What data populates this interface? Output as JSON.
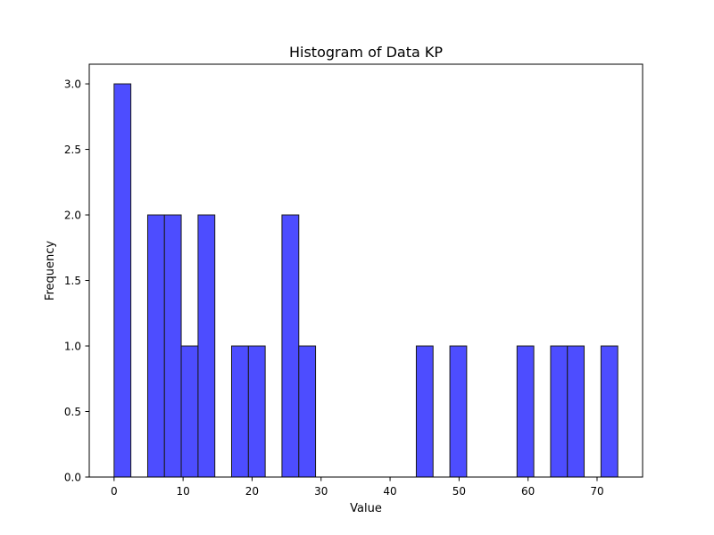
{
  "chart_data": {
    "type": "bar",
    "title": "Histogram of Data KP",
    "xlabel": "Value",
    "ylabel": "Frequency",
    "xlim": [
      -3.6,
      76.6
    ],
    "ylim": [
      0,
      3.15
    ],
    "x_ticks": [
      0,
      10,
      20,
      30,
      40,
      50,
      60,
      70
    ],
    "y_ticks": [
      0.0,
      0.5,
      1.0,
      1.5,
      2.0,
      2.5,
      3.0
    ],
    "y_tick_labels": [
      "0.0",
      "0.5",
      "1.0",
      "1.5",
      "2.0",
      "2.5",
      "3.0"
    ],
    "grid": false,
    "bin_edges": [
      0.0,
      2.43,
      4.87,
      7.3,
      9.73,
      12.17,
      14.6,
      17.03,
      19.47,
      21.9,
      24.33,
      26.77,
      29.2,
      31.63,
      34.07,
      36.5,
      38.93,
      41.37,
      43.8,
      46.23,
      48.67,
      51.1,
      53.53,
      55.97,
      58.4,
      60.83,
      63.27,
      65.7,
      68.13,
      70.57,
      73.0
    ],
    "values": [
      3,
      0,
      2,
      2,
      1,
      2,
      0,
      1,
      1,
      0,
      2,
      1,
      0,
      0,
      0,
      0,
      0,
      0,
      1,
      0,
      1,
      0,
      0,
      0,
      1,
      0,
      1,
      1,
      0,
      1
    ],
    "colors": {
      "bar_fill": "#4d4dff",
      "bar_edge": "#1a1a1a"
    }
  }
}
